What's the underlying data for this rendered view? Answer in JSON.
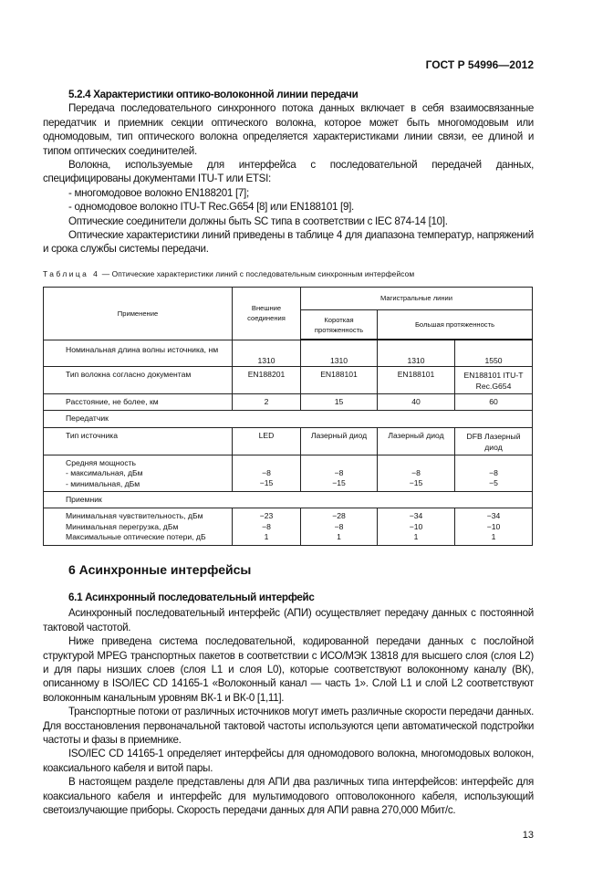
{
  "header": {
    "doc_id": "ГОСТ Р 54996—2012"
  },
  "section_524": {
    "title": "5.2.4 Характеристики оптико-волоконной линии передачи",
    "paragraphs": [
      "Передача последовательного синхронного потока данных включает в себя взаимосвязанные передатчик и приемник секции оптического волокна, которое может быть многомодовым или одномодовым, тип оптического волокна определяется характеристиками линии связи, ее длиной и типом оптических соединителей.",
      "Волокна, используемые для интерфейса с последовательной передачей данных, специфицированы документами ITU-T или ETSI:"
    ],
    "list": [
      "- многомодовое волокно EN188201 [7];",
      "- одномодовое волокно ITU-T Rec.G654 [8] или EN188101 [9]."
    ],
    "paragraphs2": [
      "Оптические соединители должны быть SC типа в соответствии с IEC 874-14 [10].",
      "Оптические характеристики линий приведены в таблице 4 для диапазона температур, напряжений и срока службы системы передачи."
    ]
  },
  "table": {
    "caption_prefix": "Таблица 4",
    "caption": " — Оптические характеристики линий с последовательным синхронным интерфейсом",
    "headers": {
      "application": "Применение",
      "external": "Внешние соединения",
      "trunk": "Магистральные линии",
      "short": "Короткая протяженность",
      "long": "Большая протяженность"
    },
    "rows": {
      "wavelength": {
        "label": "Номинальная длина волны источника, нм",
        "values": [
          "1310",
          "1310",
          "1310",
          "1550"
        ]
      },
      "fiber": {
        "label": "Тип волокна согласно документам",
        "values": [
          "EN188201",
          "EN188101",
          "EN188101",
          "EN188101 ITU-T Rec.G654"
        ]
      },
      "distance": {
        "label": "Расстояние, не более, км",
        "values": [
          "2",
          "15",
          "40",
          "60"
        ]
      },
      "transmitter": "Передатчик",
      "source": {
        "label": "Тип источника",
        "values": [
          "LED",
          "Лазерный диод",
          "Лазерный диод",
          "DFB Лазерный диод"
        ]
      },
      "power": {
        "label": "Средняя мощность",
        "max_label": "- максимальная, дБм",
        "min_label": "- минимальная, дБм",
        "max": [
          "−8",
          "−8",
          "−8",
          "−8"
        ],
        "min": [
          "−15",
          "−15",
          "−15",
          "−5"
        ]
      },
      "receiver": "Приемник",
      "rx": {
        "sens_label": "Минимальная чувствительность, дБм",
        "over_label": "Минимальная перегрузка, дБм",
        "loss_label": "Максимальные оптические потери, дБ",
        "sens": [
          "−23",
          "−28",
          "−34",
          "−34"
        ],
        "over": [
          "−8",
          "−8",
          "−10",
          "−10"
        ],
        "loss": [
          "1",
          "1",
          "1",
          "1"
        ]
      }
    }
  },
  "section_6": {
    "title": "6 Асинхронные интерфейсы",
    "sub_title": "6.1 Асинхронный последовательный интерфейс",
    "paragraphs": [
      "Асинхронный последовательный интерфейс (АПИ) осуществляет передачу данных с постоянной тактовой частотой.",
      "Ниже приведена система последовательной, кодированной передачи данных с послойной структурой MPEG транспортных пакетов в соответствии с ИСО/МЭК 13818 для высшего слоя (слоя L2) и для пары низших слоев (слоя L1 и слоя L0), которые соответствуют волоконному каналу (ВК), описанному в ISO/IEC CD 14165-1 «Волоконный канал — часть 1». Слой L1 и слой L2 соответствуют волоконным канальным уровням ВК-1 и ВК-0 [1,11].",
      "Транспортные потоки от различных источников могут иметь различные скорости передачи данных. Для восстановления первоначальной тактовой частоты используются цепи автоматической подстройки частоты и фазы в приемнике.",
      "ISO/IEC CD 14165-1 определяет интерфейсы для одномодового волокна, многомодовых волокон, коаксиального кабеля и витой пары.",
      "В настоящем разделе представлены для АПИ два различных типа интерфейсов: интерфейс для коаксиального кабеля и интерфейс для мультимодового оптоволоконного кабеля, использующий светоизлучающие приборы. Скорость передачи данных для АПИ равна 270,000 Мбит/с."
    ]
  },
  "page_number": "13"
}
